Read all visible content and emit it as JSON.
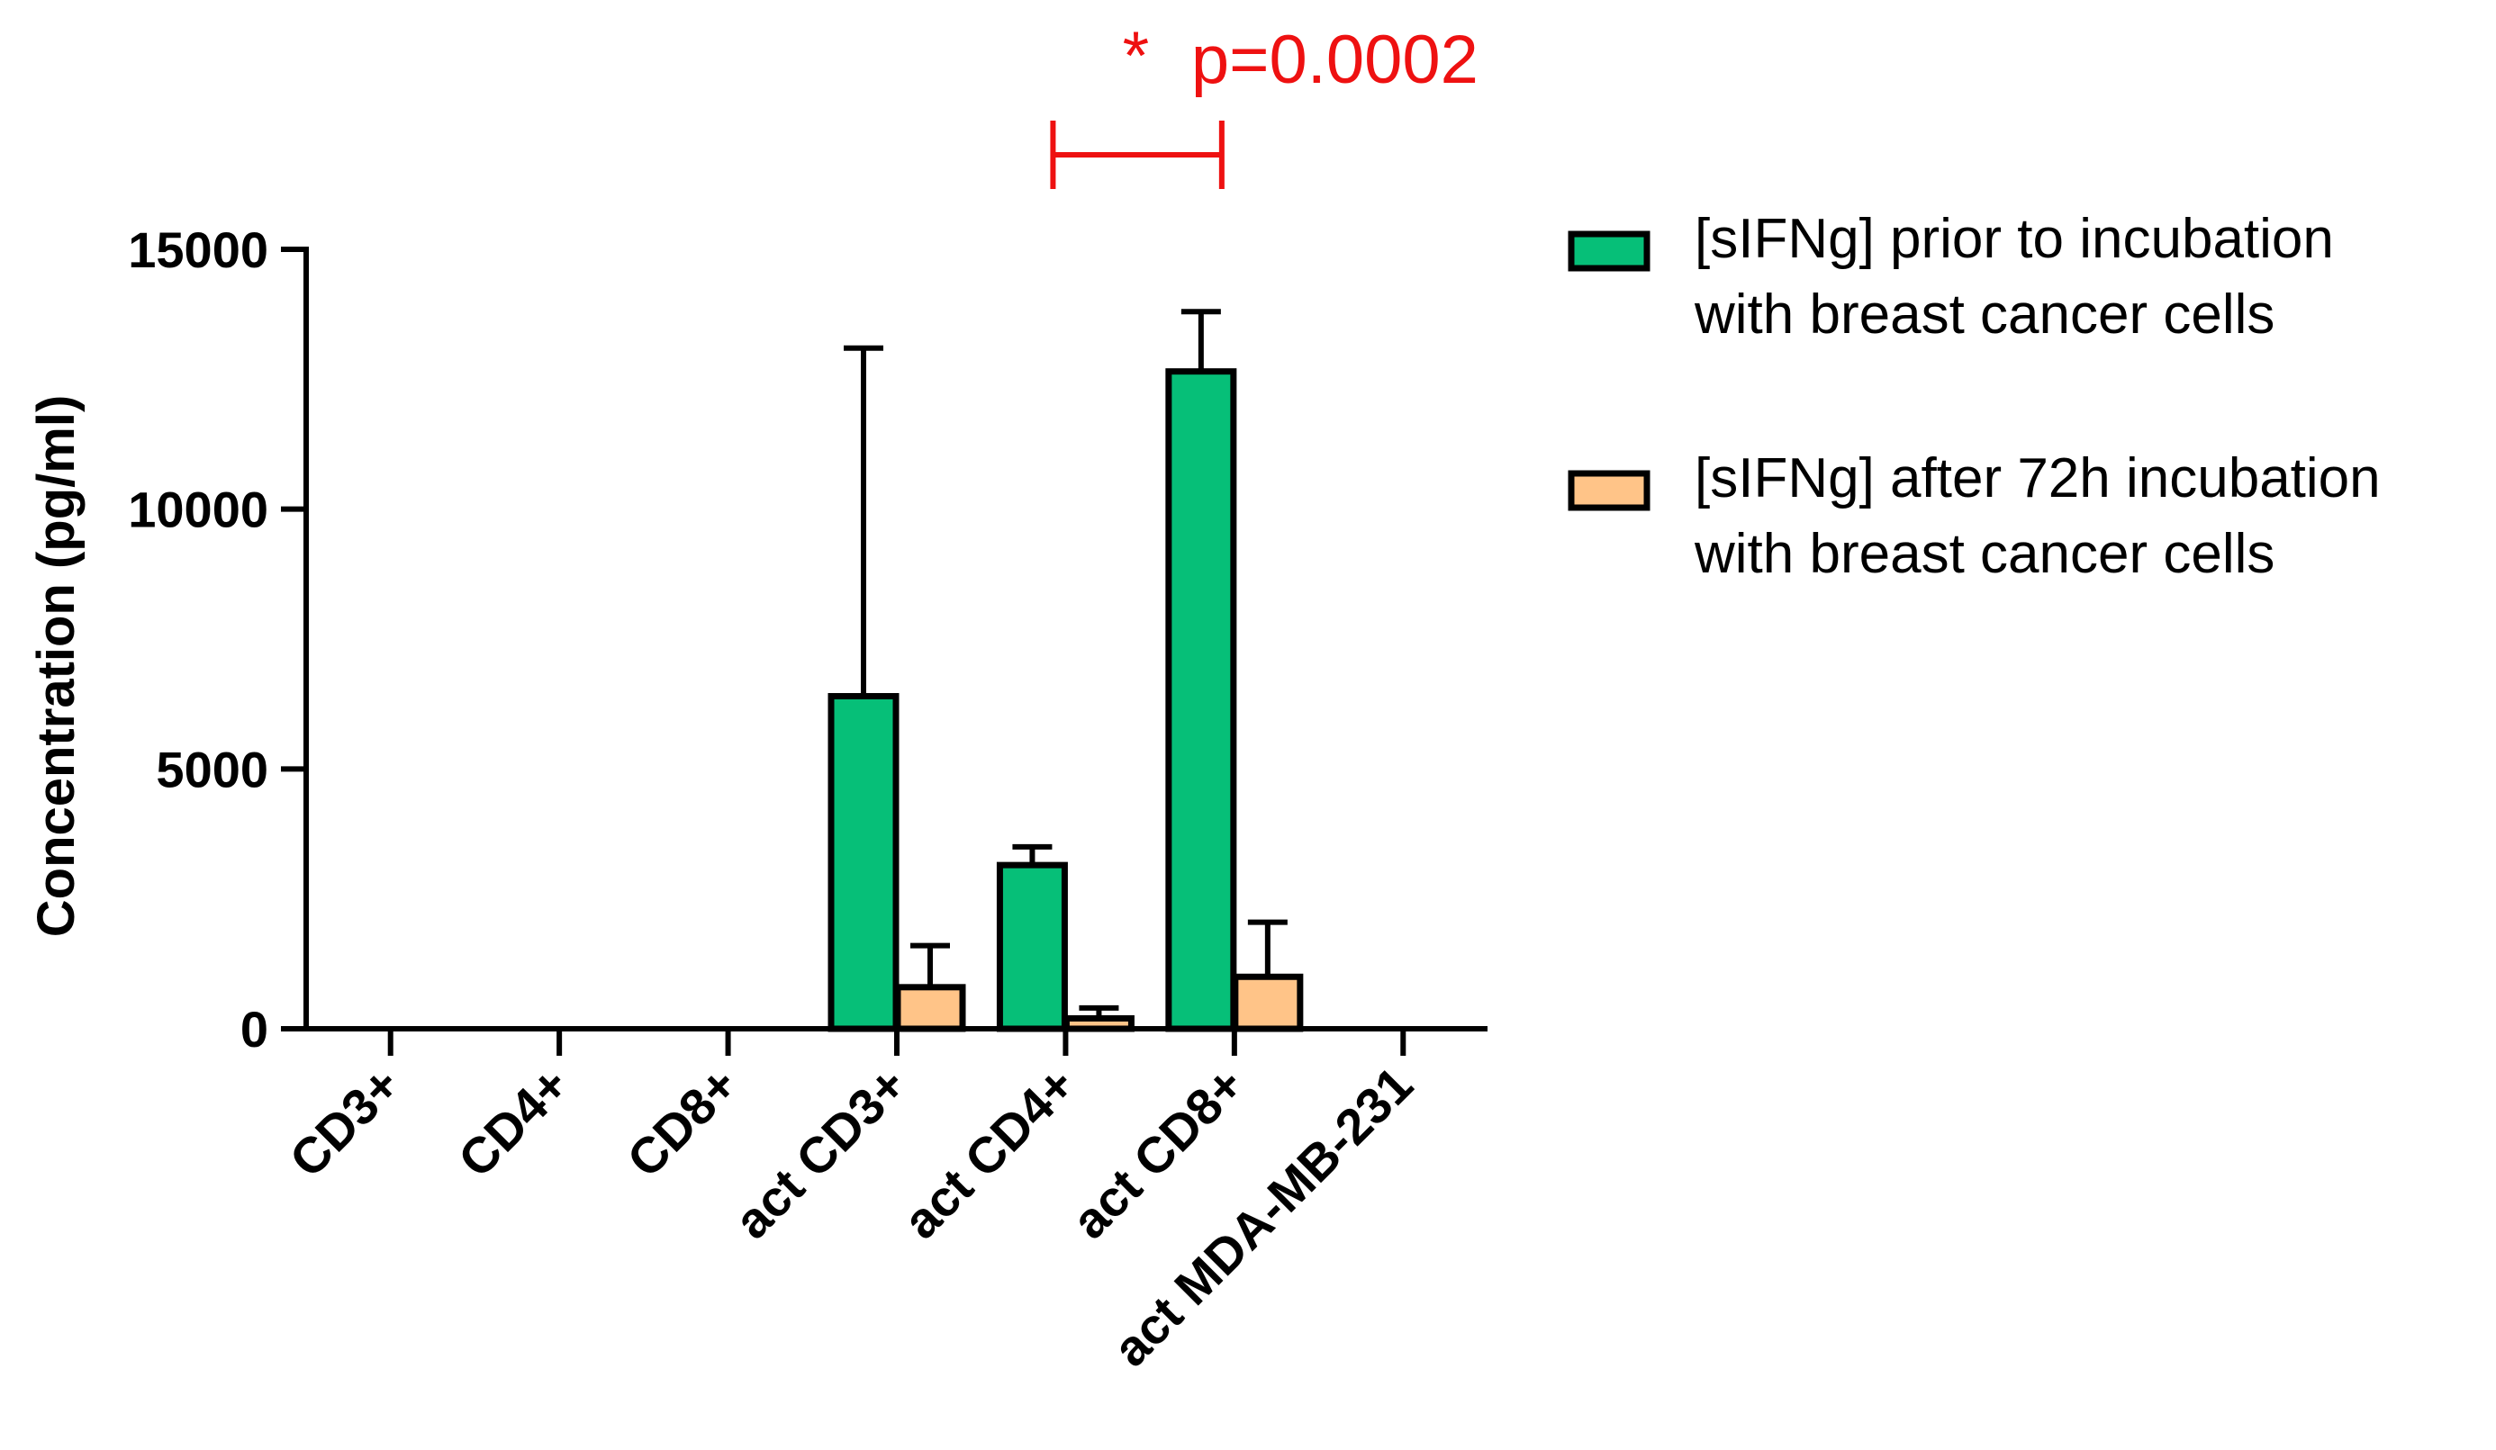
{
  "chart_data": {
    "type": "bar",
    "categories": [
      "CD3+",
      "CD4+",
      "CD8+",
      "act CD3+",
      "act CD4+",
      "act CD8+",
      "act MDA-MB-231"
    ],
    "series": [
      {
        "name": "[sIFNg] prior to incubation with breast cancer cells",
        "legend_lines": [
          "[sIFNg] prior to incubation",
          "with breast cancer cells"
        ],
        "color": "#06bf78",
        "values": [
          0,
          0,
          0,
          6400,
          3150,
          12650,
          0
        ],
        "error_upper": [
          0,
          0,
          0,
          13100,
          3500,
          13800,
          0
        ]
      },
      {
        "name": "[sIFNg] after 72h incubation with breast cancer cells",
        "legend_lines": [
          "[sIFNg] after 72h incubation",
          "with breast cancer cells"
        ],
        "color": "#ffc488",
        "values": [
          0,
          0,
          0,
          800,
          200,
          1000,
          0
        ],
        "error_upper": [
          0,
          0,
          0,
          1600,
          400,
          2050,
          0
        ]
      }
    ],
    "ylabel": "Concentration (pg/ml)",
    "xlabel": "",
    "ylim": [
      0,
      15000
    ],
    "yticks": [
      "0",
      "5000",
      "10000",
      "15000"
    ],
    "grid": false,
    "legend": "right",
    "annotation": {
      "star": "*",
      "text": "p=0.0002",
      "color": "#ee1111",
      "from_category": "act CD4+",
      "to_category": "act CD8+"
    }
  }
}
